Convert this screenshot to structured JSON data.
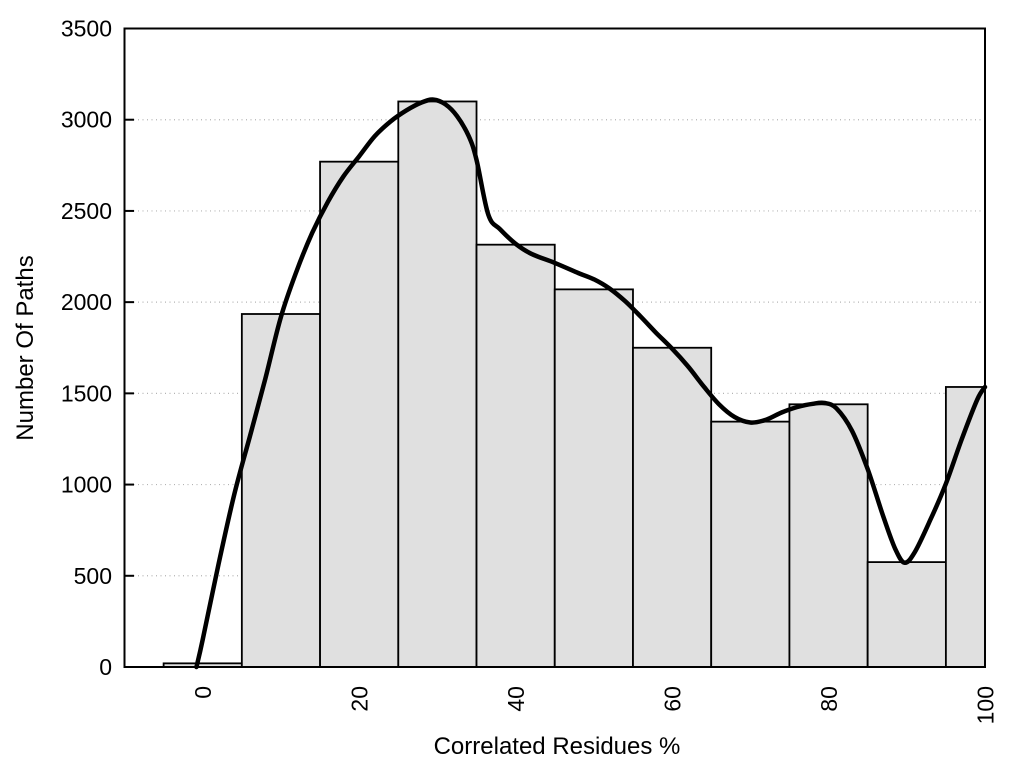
{
  "chart_data": {
    "type": "bar",
    "subtype": "histogram-with-density-curve",
    "title": "",
    "xlabel": "Correlated Residues %",
    "ylabel": "Number Of Paths",
    "xlim": [
      -10,
      100
    ],
    "ylim": [
      0,
      3500
    ],
    "grid": "dotted-horizontal",
    "legend": "none",
    "x_ticks": [
      {
        "value": 0,
        "label": "0"
      },
      {
        "value": 20,
        "label": "20"
      },
      {
        "value": 40,
        "label": "40"
      },
      {
        "value": 60,
        "label": "60"
      },
      {
        "value": 80,
        "label": "80"
      },
      {
        "value": 100,
        "label": "100"
      }
    ],
    "y_ticks": [
      {
        "value": 0,
        "label": "0"
      },
      {
        "value": 500,
        "label": "500"
      },
      {
        "value": 1000,
        "label": "1000"
      },
      {
        "value": 1500,
        "label": "1500"
      },
      {
        "value": 2000,
        "label": "2000"
      },
      {
        "value": 2500,
        "label": "2500"
      },
      {
        "value": 3000,
        "label": "3000"
      },
      {
        "value": 3500,
        "label": "3500"
      }
    ],
    "grid_values": [
      500,
      1000,
      1500,
      2000,
      2500,
      3000
    ],
    "bin_width": 10,
    "categories": [
      0,
      10,
      20,
      30,
      40,
      50,
      60,
      70,
      80,
      90,
      100
    ],
    "values": [
      20,
      1935,
      2770,
      3100,
      2315,
      2070,
      1750,
      1345,
      1440,
      575,
      1535
    ],
    "curve_points": [
      [
        -0.8,
        0
      ],
      [
        0,
        150
      ],
      [
        2,
        560
      ],
      [
        4,
        940
      ],
      [
        6,
        1260
      ],
      [
        8,
        1580
      ],
      [
        10,
        1920
      ],
      [
        12,
        2170
      ],
      [
        14,
        2380
      ],
      [
        16,
        2550
      ],
      [
        18,
        2690
      ],
      [
        20,
        2800
      ],
      [
        22,
        2910
      ],
      [
        24,
        2990
      ],
      [
        26,
        3050
      ],
      [
        28,
        3095
      ],
      [
        29.5,
        3110
      ],
      [
        31,
        3085
      ],
      [
        32.5,
        3020
      ],
      [
        34,
        2910
      ],
      [
        35,
        2780
      ],
      [
        36.5,
        2480
      ],
      [
        38,
        2400
      ],
      [
        40,
        2320
      ],
      [
        42,
        2265
      ],
      [
        45,
        2215
      ],
      [
        48,
        2160
      ],
      [
        50,
        2125
      ],
      [
        52,
        2075
      ],
      [
        54,
        2005
      ],
      [
        56,
        1920
      ],
      [
        58,
        1830
      ],
      [
        60,
        1745
      ],
      [
        62,
        1650
      ],
      [
        64,
        1540
      ],
      [
        66,
        1440
      ],
      [
        68,
        1370
      ],
      [
        70,
        1340
      ],
      [
        72,
        1355
      ],
      [
        74,
        1395
      ],
      [
        76,
        1425
      ],
      [
        78,
        1443
      ],
      [
        79.5,
        1447
      ],
      [
        81,
        1418
      ],
      [
        83,
        1295
      ],
      [
        85,
        1085
      ],
      [
        87,
        825
      ],
      [
        88.5,
        650
      ],
      [
        89.7,
        572
      ],
      [
        91,
        628
      ],
      [
        93,
        805
      ],
      [
        95,
        1005
      ],
      [
        97,
        1245
      ],
      [
        99,
        1465
      ],
      [
        100,
        1535
      ]
    ],
    "colors": {
      "bar_fill": "#e0e0e0",
      "bar_stroke": "#000000",
      "curve": "#000000",
      "grid": "#b3b3b3",
      "axis": "#000000",
      "text": "#000000",
      "background": "#ffffff"
    }
  }
}
